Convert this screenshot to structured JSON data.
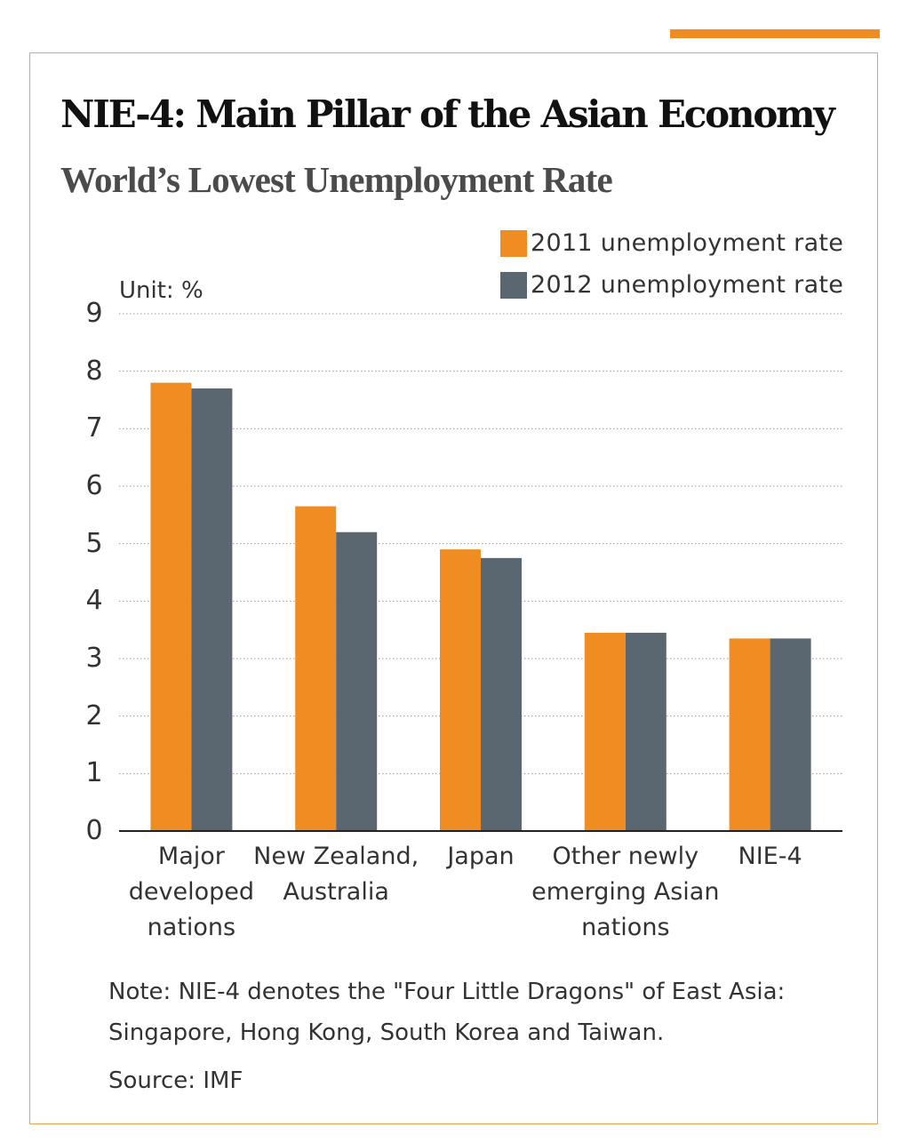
{
  "colors": {
    "accent": "#ef8d22",
    "frame": "#f0a24a",
    "series_2011": "#ef8d22",
    "series_2012": "#5b6770",
    "grid": "#9a9a9a",
    "axis": "#222222"
  },
  "header": {
    "title": "NIE-4: Main Pillar of the Asian Economy",
    "subtitle": "World’s Lowest Unemployment Rate"
  },
  "footer": {
    "note": "Note: NIE-4 denotes the \"Four Little Dragons\" of East Asia: Singapore, Hong Kong, South Korea and Taiwan.",
    "source": "Source: IMF"
  },
  "chart_data": {
    "type": "bar",
    "title": "NIE-4: Main Pillar of the Asian Economy",
    "subtitle": "World’s Lowest Unemployment Rate",
    "unit_label": "Unit: %",
    "xlabel": "",
    "ylabel": "",
    "ylim": [
      0,
      9
    ],
    "yticks": [
      "0",
      "1",
      "2",
      "3",
      "4",
      "5",
      "6",
      "7",
      "8",
      "9"
    ],
    "grid": "horizontal dotted",
    "legend_position": "top-right",
    "categories": [
      "Major\ndeveloped\nnations",
      "New Zealand,\nAustralia",
      "Japan",
      "Other newly\nemerging Asian\nnations",
      "NIE-4"
    ],
    "series": [
      {
        "name": "2011 unemployment rate",
        "color": "#ef8d22",
        "values": [
          7.8,
          5.65,
          4.9,
          3.45,
          3.35
        ]
      },
      {
        "name": "2012 unemployment rate",
        "color": "#5b6770",
        "values": [
          7.7,
          5.2,
          4.75,
          3.45,
          3.35
        ]
      }
    ]
  }
}
